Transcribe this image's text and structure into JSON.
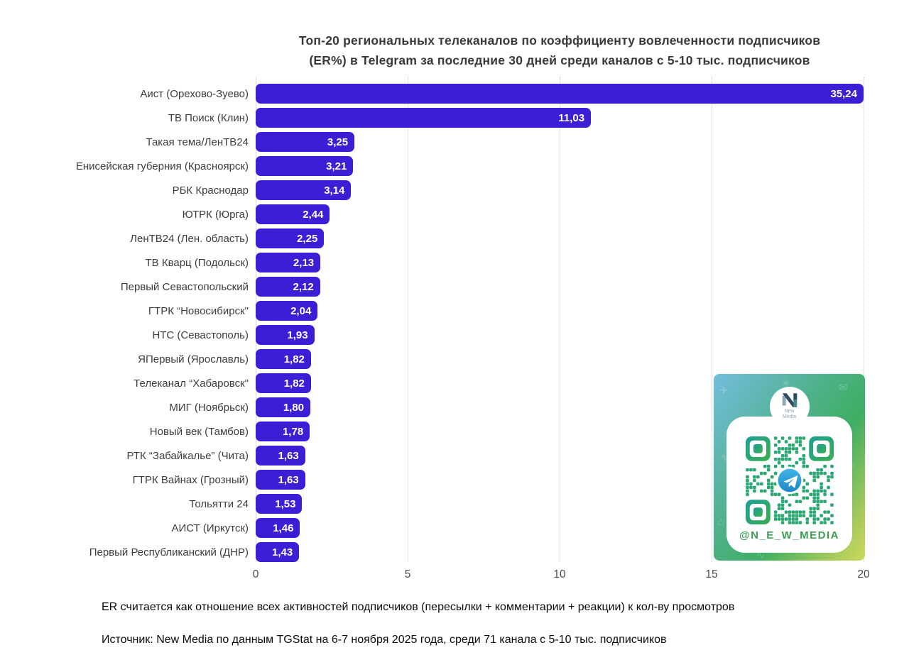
{
  "title_lines": [
    "Топ-20 региональных телеканалов по коэффициенту вовлеченности подписчиков",
    "(ER%) в Telegram за последние 30 дней среди каналов с 5-10 тыс. подписчиков"
  ],
  "chart_data": {
    "type": "bar",
    "orientation": "horizontal",
    "title": "Топ-20 региональных телеканалов по коэффициенту вовлеченности подписчиков (ER%) в Telegram за последние 30 дней среди каналов с 5-10 тыс. подписчиков",
    "categories": [
      "Аист (Орехово-Зуево)",
      "ТВ Поиск (Клин)",
      "Такая тема/ЛенТВ24",
      "Енисейская губерния (Красноярск)",
      "РБК Краснодар",
      "ЮТРК (Юрга)",
      "ЛенТВ24 (Лен. область)",
      "ТВ Кварц (Подольск)",
      "Первый Севастопольский",
      "ГТРК “Новосибирск\"",
      "НТС (Севастополь)",
      "ЯПервый (Ярославль)",
      "Телеканал “Хабаровск\"",
      "МИГ (Ноябрьск)",
      "Новый век (Тамбов)",
      "РТК “Забайкалье” (Чита)",
      "ГТРК Вайнах (Грозный)",
      "Тольятти 24",
      "АИСТ (Иркутск)",
      "Первый Республиканский (ДНР)"
    ],
    "values": [
      35.24,
      11.03,
      3.25,
      3.21,
      3.14,
      2.44,
      2.25,
      2.13,
      2.12,
      2.04,
      1.93,
      1.82,
      1.82,
      1.8,
      1.78,
      1.63,
      1.63,
      1.53,
      1.46,
      1.43
    ],
    "xlabel": "",
    "ylabel": "",
    "xlim": [
      0,
      20
    ],
    "xticks": [
      0,
      5,
      10,
      15,
      20
    ],
    "grid": "vertical-dotted",
    "legend": "none",
    "decimal_separator": ",",
    "bar_color": "#3B1FD6",
    "value_label_color": "#ffffff"
  },
  "footnotes": [
    "ER считается как отношение всех активностей подписчиков (пересылки + комментарии + реакции) к кол-ву просмотров",
    "Источник: New Media по данным TGStat на 6-7 ноября 2025 года, среди 71 канала с 5-10 тыс. подписчиков"
  ],
  "promo": {
    "handle": "@N_E_W_MEDIA",
    "handle_color": "#3d9e53",
    "brand_lines": [
      "New",
      "Media"
    ],
    "gradient_colors": [
      "#73bede",
      "#3fae62",
      "#cdd95c"
    ],
    "qr_colors": [
      "#1ba098",
      "#3aae4e"
    ],
    "telegram_blue": [
      "#41b4e6",
      "#1e88c7"
    ]
  }
}
